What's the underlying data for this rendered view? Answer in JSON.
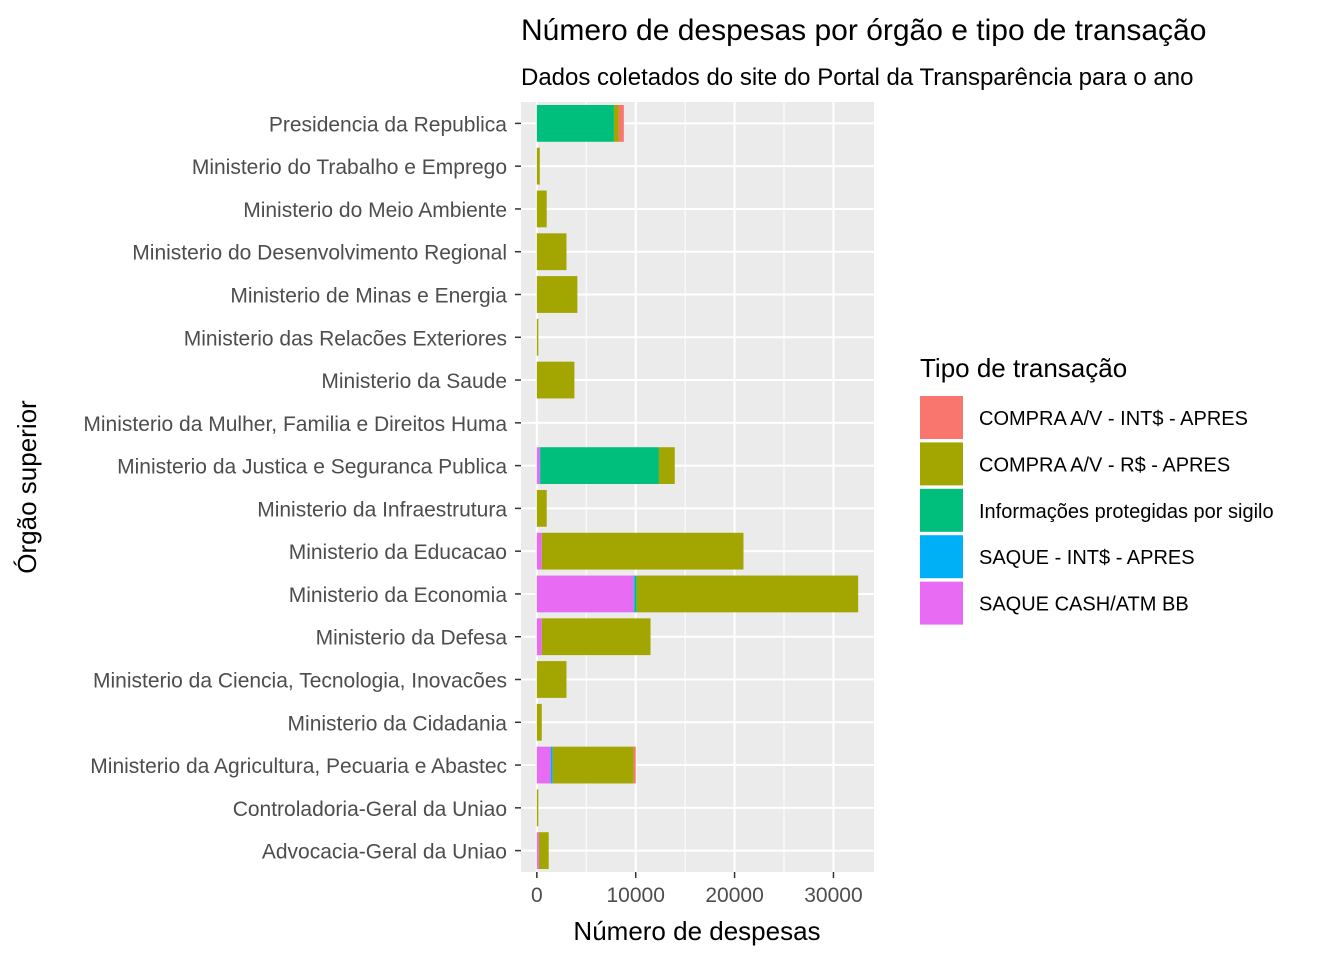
{
  "chart_data": {
    "type": "bar",
    "orientation": "horizontal",
    "stacked": true,
    "title": "Número de despesas por órgão e tipo de transação",
    "subtitle": "Dados coletados do site do Portal da Transparência para o ano",
    "xlabel": "Número de despesas",
    "ylabel": "Órgão superior",
    "xlim": [
      -1600,
      34100
    ],
    "xticks": [
      0,
      10000,
      20000,
      30000
    ],
    "xtick_labels": [
      "0",
      "10000",
      "20000",
      "30000"
    ],
    "grid": true,
    "legend_position": "right",
    "legend_title": "Tipo de transação",
    "categories": [
      "Presidencia da Republica",
      "Ministerio do Trabalho e Emprego",
      "Ministerio do Meio Ambiente",
      "Ministerio do Desenvolvimento Regional",
      "Ministerio de Minas e Energia",
      "Ministerio das Relacões Exteriores",
      "Ministerio da Saude",
      "Ministerio da Mulher, Familia e Direitos Huma",
      "Ministerio da Justica e Seguranca Publica",
      "Ministerio da Infraestrutura",
      "Ministerio da Educacao",
      "Ministerio da Economia",
      "Ministerio da Defesa",
      "Ministerio da Ciencia, Tecnologia, Inovacões ",
      "Ministerio da Cidadania",
      "Ministerio da Agricultura, Pecuaria e Abastec",
      "Controladoria-Geral da Uniao",
      "Advocacia-Geral da Uniao"
    ],
    "series": [
      {
        "name": "SAQUE CASH/ATM BB",
        "color": "#E76BF3",
        "values": [
          0,
          0,
          0,
          0,
          0,
          0,
          0,
          0,
          300,
          0,
          500,
          9800,
          500,
          0,
          0,
          1400,
          0,
          200
        ]
      },
      {
        "name": "SAQUE - INT$ - APRES",
        "color": "#00B0F6",
        "values": [
          0,
          0,
          0,
          0,
          0,
          0,
          0,
          0,
          50,
          0,
          0,
          100,
          0,
          0,
          0,
          200,
          0,
          0
        ]
      },
      {
        "name": "Informações protegidas por sigilo",
        "color": "#00BF7D",
        "values": [
          7800,
          0,
          0,
          0,
          0,
          0,
          0,
          0,
          12000,
          0,
          0,
          200,
          0,
          0,
          0,
          0,
          0,
          0
        ]
      },
      {
        "name": "COMPRA A/V - R$ - APRES",
        "color": "#A3A500",
        "values": [
          500,
          300,
          1000,
          3000,
          4100,
          150,
          3800,
          0,
          1600,
          1000,
          20400,
          22400,
          11000,
          3000,
          500,
          8200,
          150,
          1000
        ]
      },
      {
        "name": "COMPRA A/V - INT$ - APRES",
        "color": "#F8766D",
        "values": [
          500,
          0,
          0,
          0,
          0,
          0,
          0,
          0,
          0,
          0,
          0,
          0,
          0,
          0,
          0,
          200,
          0,
          0
        ]
      }
    ],
    "legend_order": [
      "COMPRA A/V - INT$ - APRES",
      "COMPRA A/V - R$ - APRES",
      "Informações protegidas por sigilo",
      "SAQUE - INT$ - APRES",
      "SAQUE CASH/ATM BB"
    ]
  }
}
